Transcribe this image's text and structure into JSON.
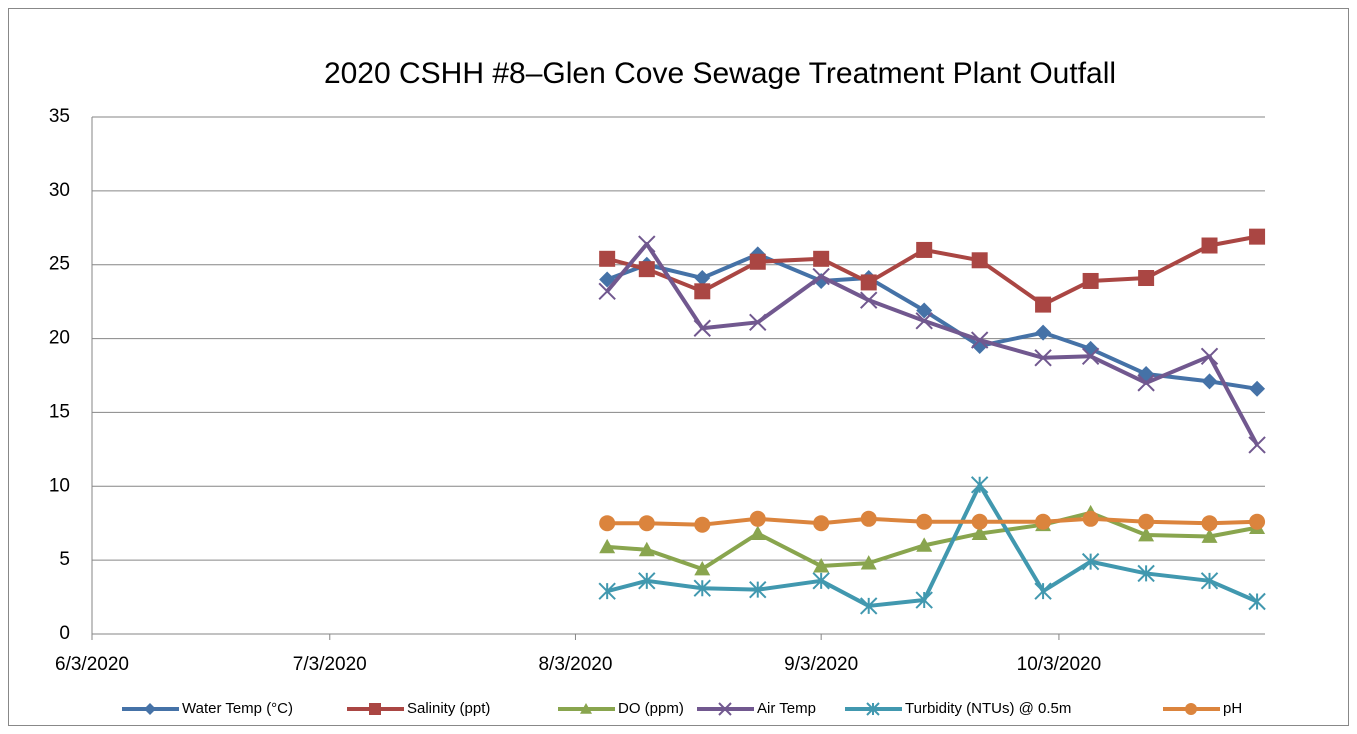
{
  "chart_data": {
    "type": "line",
    "title": "2020 CSHH #8–Glen Cove Sewage Treatment Plant Outfall",
    "x": [
      "8/7/2020",
      "8/12/2020",
      "8/19/2020",
      "8/26/2020",
      "9/3/2020",
      "9/9/2020",
      "9/16/2020",
      "9/23/2020",
      "10/1/2020",
      "10/7/2020",
      "10/14/2020",
      "10/22/2020",
      "10/28/2020"
    ],
    "xlim": [
      "6/3/2020",
      "10/29/2020"
    ],
    "xticks": [
      "6/3/2020",
      "7/3/2020",
      "8/3/2020",
      "9/3/2020",
      "10/3/2020"
    ],
    "ylim": [
      0,
      35
    ],
    "yticks": [
      0,
      5,
      10,
      15,
      20,
      25,
      30,
      35
    ],
    "grid": true,
    "legend": "bottom",
    "series": [
      {
        "name": "Water Temp (°C)",
        "color": "#4572a7",
        "marker": "diamond",
        "values": [
          24.0,
          25.0,
          24.1,
          25.7,
          23.9,
          24.1,
          21.9,
          19.5,
          20.4,
          19.3,
          17.6,
          17.1,
          16.6
        ]
      },
      {
        "name": "Salinity (ppt)",
        "color": "#aa4643",
        "marker": "square",
        "values": [
          25.4,
          24.7,
          23.2,
          25.2,
          25.4,
          23.8,
          26.0,
          25.3,
          22.3,
          23.9,
          24.1,
          26.3,
          26.9
        ]
      },
      {
        "name": "DO (ppm)",
        "color": "#89a54e",
        "marker": "triangle",
        "values": [
          5.9,
          5.7,
          4.4,
          6.8,
          4.6,
          4.8,
          6.0,
          6.8,
          7.4,
          8.2,
          6.7,
          6.6,
          7.2
        ]
      },
      {
        "name": "Air Temp",
        "color": "#71588f",
        "marker": "x",
        "values": [
          23.2,
          26.4,
          20.7,
          21.1,
          24.2,
          22.6,
          21.2,
          19.9,
          18.7,
          18.8,
          17.0,
          18.8,
          12.8
        ]
      },
      {
        "name": "Turbidity (NTUs) @ 0.5m",
        "color": "#4198af",
        "marker": "star",
        "values": [
          2.9,
          3.6,
          3.1,
          3.0,
          3.6,
          1.9,
          2.3,
          10.1,
          2.9,
          4.9,
          4.1,
          3.6,
          2.2
        ]
      },
      {
        "name": "pH",
        "color": "#db843d",
        "marker": "circle",
        "values": [
          7.5,
          7.5,
          7.4,
          7.8,
          7.5,
          7.8,
          7.6,
          7.6,
          7.6,
          7.8,
          7.6,
          7.5,
          7.6
        ]
      }
    ]
  }
}
